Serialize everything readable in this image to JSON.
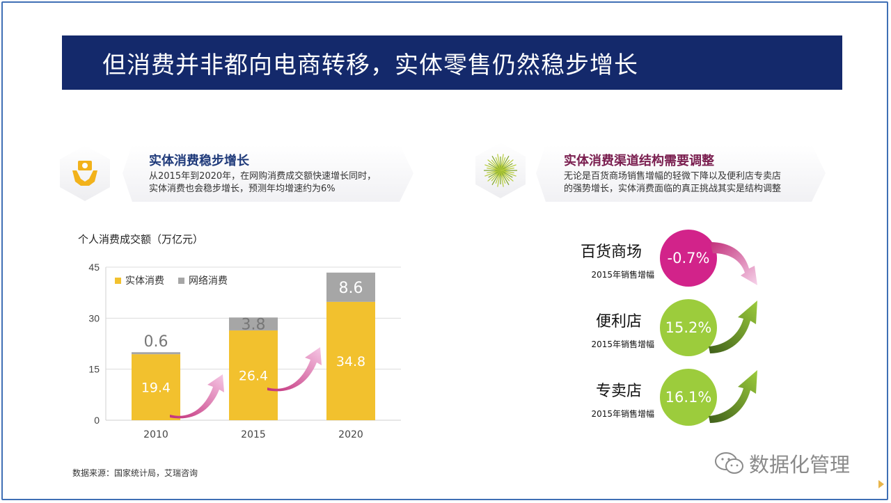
{
  "slide": {
    "title": "但消费并非都向电商转移，实体零售仍然稳步增长"
  },
  "left_callout": {
    "icon": "money-hands-icon",
    "title": "实体消费稳步增长",
    "text_line1": "从2015年到2020年，在网购消费成交额快速增长同时，",
    "text_line2": "实体消费也会稳步增长，预测年均增速约为6%"
  },
  "right_callout": {
    "icon": "burst-icon",
    "title": "实体消费渠道结构需要调整",
    "text_line1": "无论是百货商场销售增幅的轻微下降以及便利店专卖店",
    "text_line2": "的强势增长，实体消费面临的真正挑战其实是结构调整"
  },
  "chart_title": "个人消费成交额（万亿元）",
  "source": "数据来源：国家统计局，艾瑞咨询",
  "colors": {
    "title_bar": "#14296b",
    "offline": "#f2c12e",
    "online": "#a6a6a6",
    "callout_title_left": "#1f3a7a",
    "callout_title_right": "#7a1e4f",
    "dept_circle": "#d2238a",
    "green_circle": "#9ccc3c"
  },
  "chart_data": {
    "type": "bar",
    "stacked": true,
    "categories": [
      "2010",
      "2015",
      "2020"
    ],
    "series": [
      {
        "name": "实体消费",
        "values": [
          19.4,
          26.4,
          34.8
        ]
      },
      {
        "name": "网络消费",
        "values": [
          0.6,
          3.8,
          8.6
        ]
      }
    ],
    "yticks": [
      "0",
      "15",
      "30",
      "45"
    ],
    "ylim": [
      0,
      45
    ],
    "grid": true,
    "legend": "top-left"
  },
  "growth": {
    "items": [
      {
        "name": "百货商场",
        "sub": "2015年销售增幅",
        "value": "-0.7%",
        "trend": "down"
      },
      {
        "name": "便利店",
        "sub": "2015年销售增幅",
        "value": "15.2%",
        "trend": "up"
      },
      {
        "name": "专卖店",
        "sub": "2015年销售增幅",
        "value": "16.1%",
        "trend": "up"
      }
    ]
  },
  "watermark": {
    "icon": "wechat-icon",
    "text": "数据化管理"
  }
}
